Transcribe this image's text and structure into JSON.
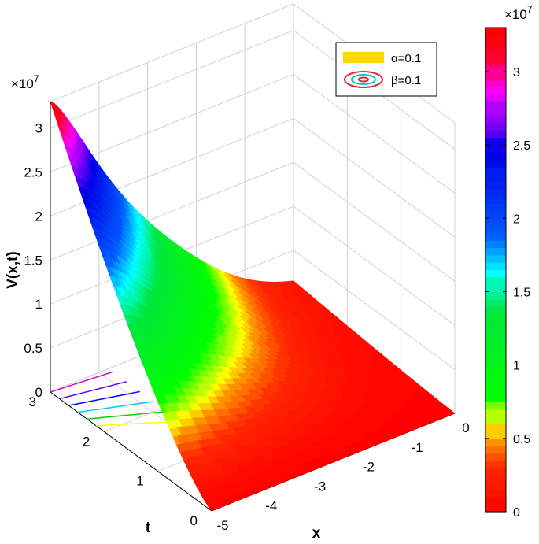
{
  "chart_data": {
    "type": "surface",
    "zlabel": "V(x,t)",
    "xlabel": "x",
    "ylabel": "t",
    "z_exponent": "×10",
    "z_exponent_power": "7",
    "colorbar_exponent": "×10",
    "colorbar_exponent_power": "7",
    "xlim": [
      -5,
      0
    ],
    "tlim": [
      0,
      3
    ],
    "zlim": [
      0,
      3.3
    ],
    "x_ticks": [
      "-5",
      "-4",
      "-3",
      "-2",
      "-1",
      "0"
    ],
    "t_ticks": [
      "0",
      "1",
      "2",
      "3"
    ],
    "z_ticks": [
      "0",
      "0.5",
      "1",
      "1.5",
      "2",
      "2.5",
      "3"
    ],
    "colorbar_ticks": [
      "0",
      "0.5",
      "1",
      "1.5",
      "2",
      "2.5",
      "3"
    ],
    "colorbar_range": [
      0,
      3.3
    ],
    "colormap": [
      "#ff0000",
      "#ff8000",
      "#ffff00",
      "#00ff00",
      "#00ffff",
      "#0000ff",
      "#ff00ff",
      "#ff0000"
    ],
    "legend": [
      {
        "label": "α=0.1",
        "style": "yellow-patch",
        "color": "#ffd700"
      },
      {
        "label": "β=0.1",
        "style": "contour-rings",
        "color": "#e0282c"
      }
    ],
    "legend_position": "top-right",
    "grid": true,
    "peak": {
      "x": -5,
      "t": 3,
      "value": 3.3
    },
    "contour_colors": [
      "#d400d4",
      "#6a00ff",
      "#0000ff",
      "#00c8ff",
      "#00d400",
      "#ffff00"
    ]
  }
}
